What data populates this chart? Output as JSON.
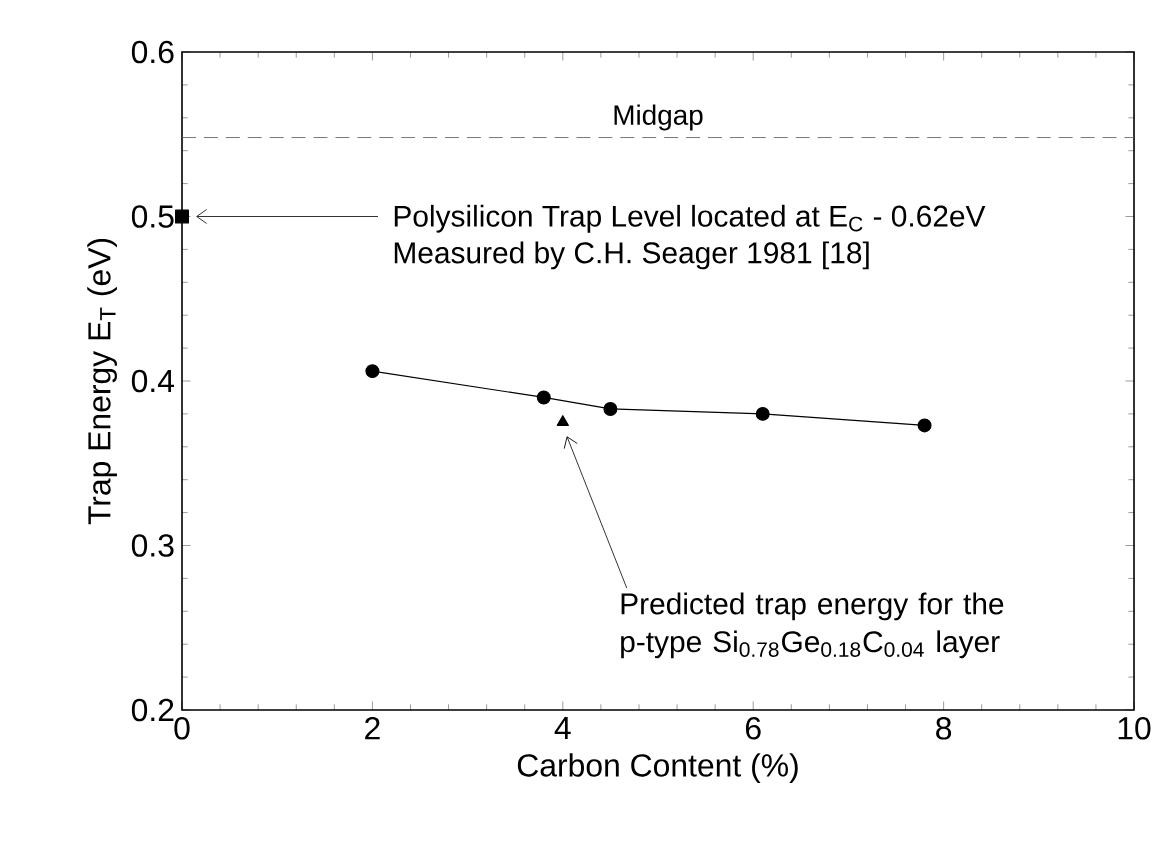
{
  "chart_data": {
    "type": "line",
    "xlabel": "Carbon Content (%)",
    "ylabel": "Trap Energy E$_{T}$ (eV)",
    "xlim": [
      0,
      10
    ],
    "ylim": [
      0.2,
      0.6
    ],
    "xticks": [
      0,
      2,
      4,
      6,
      8,
      10
    ],
    "yticks": [
      0.2,
      0.3,
      0.4,
      0.5,
      0.6
    ],
    "series": [
      {
        "color": "#000000",
        "marker": "circle",
        "x": [
          2,
          3.8,
          4.5,
          6.1,
          7.8
        ],
        "values": [
          0.406,
          0.39,
          0.383,
          0.38,
          0.373
        ]
      },
      {
        "type": "scatter",
        "color": "#000000",
        "marker": "triangle",
        "x": [
          4
        ],
        "values": [
          0.375
        ]
      },
      {
        "type": "scatter",
        "color": "#000000",
        "marker": "square",
        "x": [
          0
        ],
        "values": [
          0.5
        ]
      }
    ],
    "ref_lines": [
      {
        "axis": "y",
        "value": 0.548,
        "label": "Midgap",
        "color": "#555555",
        "line_style": "dashed"
      }
    ],
    "annotations": [
      {
        "text": "Polysilicon Trap Level located at E$_{C}$ - 0.62eV",
        "x": 0,
        "y": 0.5
      },
      "Measured by C.H. Seager 1981 [18]",
      {
        "text": "Predicted trap energy for the p-type Si$_{0.78}$Ge$_{0.18}$C$_{0.04}$ layer",
        "x": 4,
        "y": 0.375
      }
    ],
    "grid": false
  }
}
